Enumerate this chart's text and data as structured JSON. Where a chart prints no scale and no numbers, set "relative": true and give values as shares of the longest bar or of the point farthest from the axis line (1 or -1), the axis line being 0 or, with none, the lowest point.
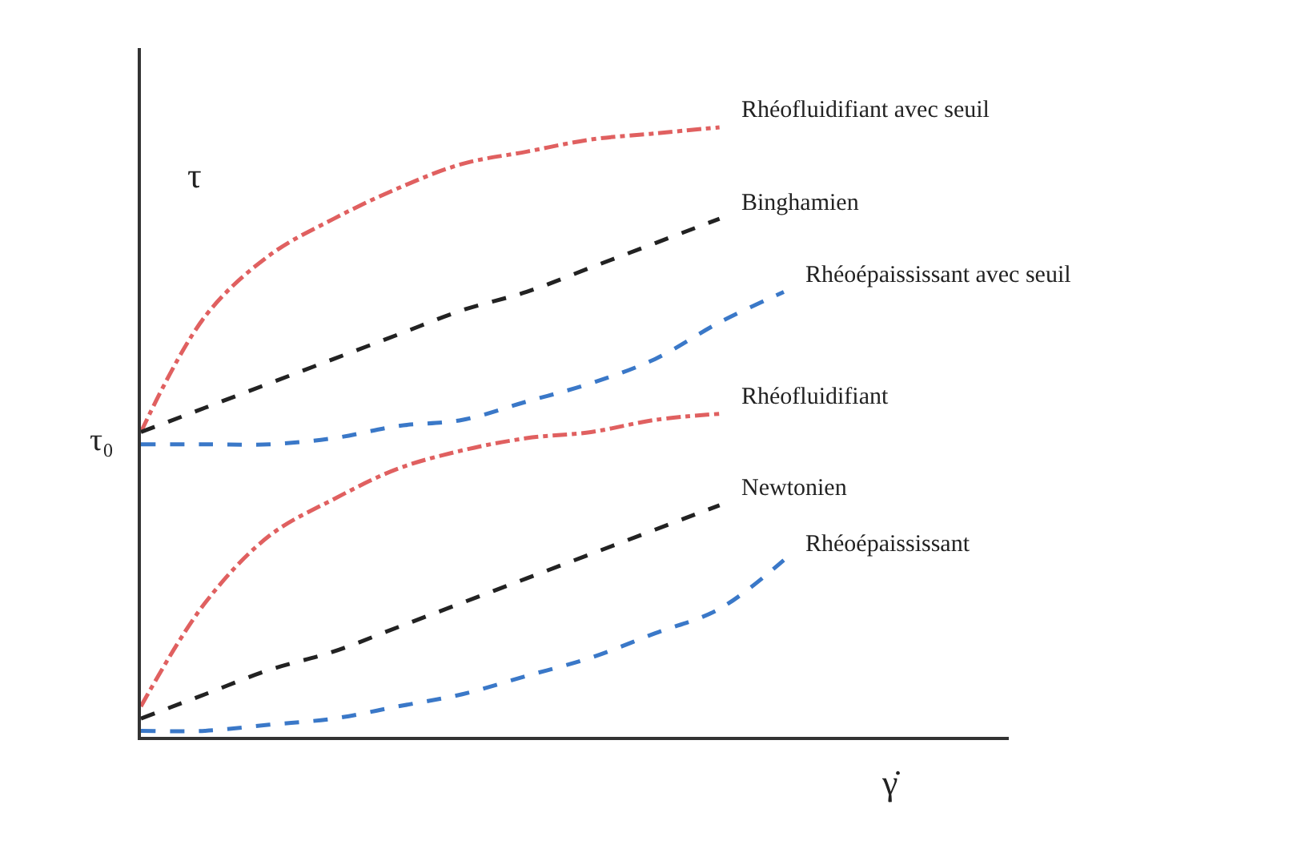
{
  "chart_data": {
    "type": "line",
    "relative": true,
    "xlabel": "γ̇",
    "ylabel": "τ",
    "legend": false,
    "categories": [
      null,
      null,
      null,
      null,
      null,
      null,
      null,
      null,
      null,
      null,
      null
    ],
    "annotations": [
      "τ₀"
    ],
    "series": [
      {
        "name": "Rhéofluidifiant avec seuil",
        "color": "#e06060",
        "line_style": "dashdot",
        "values": [
          0.5,
          0.69,
          0.79,
          0.85,
          0.9,
          0.94,
          0.96,
          0.98,
          0.99,
          1.0,
          null
        ]
      },
      {
        "name": "Binghamien",
        "color": "#222222",
        "line_style": "dashed",
        "values": [
          0.5,
          0.54,
          0.58,
          0.62,
          0.66,
          0.7,
          0.73,
          0.77,
          0.81,
          0.85,
          null
        ]
      },
      {
        "name": "Rhéoépaississant avec seuil",
        "color": "#3a78c8",
        "line_style": "dashed",
        "values": [
          0.48,
          0.48,
          0.48,
          0.49,
          0.51,
          0.52,
          0.55,
          0.58,
          0.62,
          0.68,
          0.73
        ]
      },
      {
        "name": "Rhéofluidifiant",
        "color": "#e06060",
        "line_style": "dashdot",
        "values": [
          0.05,
          0.22,
          0.33,
          0.39,
          0.44,
          0.47,
          0.49,
          0.5,
          0.52,
          0.53,
          null
        ]
      },
      {
        "name": "Newtonien",
        "color": "#222222",
        "line_style": "dashed",
        "values": [
          0.03,
          0.07,
          0.11,
          0.14,
          0.18,
          0.22,
          0.26,
          0.3,
          0.34,
          0.38,
          null
        ]
      },
      {
        "name": "Rhéoépaississant",
        "color": "#3a78c8",
        "line_style": "dashed",
        "values": [
          0.01,
          0.01,
          0.02,
          0.03,
          0.05,
          0.07,
          0.1,
          0.13,
          0.17,
          0.21,
          0.29
        ]
      }
    ]
  }
}
